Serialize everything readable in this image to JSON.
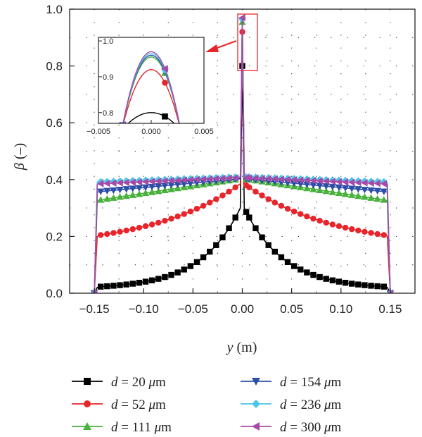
{
  "chart_data": {
    "type": "line",
    "xlabel": {
      "symbol": "y",
      "unit": " (m)"
    },
    "ylabel": {
      "symbol": "β",
      "unit": " (–)"
    },
    "xlim": [
      -0.175,
      0.175
    ],
    "ylim": [
      0,
      1.0
    ],
    "xticks": [
      -0.15,
      -0.1,
      -0.05,
      0.0,
      0.05,
      0.1,
      0.15
    ],
    "xtick_labels": [
      "−0.15",
      "−0.10",
      "−0.05",
      "0.00",
      "0.05",
      "0.10",
      "0.15"
    ],
    "yticks": [
      0.0,
      0.2,
      0.4,
      0.6,
      0.8,
      1.0
    ],
    "ytick_labels": [
      "0.0",
      "0.2",
      "0.4",
      "0.6",
      "0.8",
      "1.0"
    ],
    "grid": "dotted",
    "series": [
      {
        "name": "d = 20 μm",
        "prefix": "d",
        "eq": " = 20 ",
        "unit_mu": "μ",
        "unit_rest": "m",
        "color": "#000000",
        "marker": "square",
        "params": {
          "wall": 0.02,
          "base": 0.0224,
          "center": 0.3,
          "shape": "exp",
          "k": 25,
          "peak": 0.8
        }
      },
      {
        "name": "d = 52 μm",
        "prefix": "d",
        "eq": " = 52 ",
        "unit_mu": "μ",
        "unit_rest": "m",
        "color": "#e8252b",
        "marker": "circle",
        "params": {
          "wall": 0.2,
          "base": 0.203,
          "center": 0.385,
          "shape": "exp",
          "k": 11,
          "peak": 0.92
        }
      },
      {
        "name": "d = 111 μm",
        "prefix": "d",
        "eq": " = 111 ",
        "unit_mu": "μ",
        "unit_rest": "m",
        "color": "#49b23c",
        "marker": "triangle-up",
        "params": {
          "wall": 0.325,
          "base": 0.327,
          "center": 0.403,
          "shape": "linear",
          "peak": 0.955
        }
      },
      {
        "name": "d = 154 μm",
        "prefix": "d",
        "eq": " = 154 ",
        "unit_mu": "μ",
        "unit_rest": "m",
        "color": "#2d4fa8",
        "marker": "triangle-down",
        "params": {
          "wall": 0.355,
          "base": 0.357,
          "center": 0.403,
          "shape": "linear",
          "peak": 0.96
        }
      },
      {
        "name": "d = 236 μm",
        "prefix": "d",
        "eq": " = 236 ",
        "unit_mu": "μ",
        "unit_rest": "m",
        "color": "#4cc6e8",
        "marker": "diamond",
        "params": {
          "wall": 0.39,
          "base": 0.392,
          "center": 0.41,
          "shape": "linear",
          "peak": 0.965
        }
      },
      {
        "name": "d = 300 μm",
        "prefix": "d",
        "eq": " = 300 ",
        "unit_mu": "μ",
        "unit_rest": "m",
        "color": "#a64aa8",
        "marker": "triangle-left",
        "params": {
          "wall": 0.383,
          "base": 0.385,
          "center": 0.407,
          "shape": "linear",
          "peak": 0.97
        }
      }
    ],
    "inset": {
      "xlim": [
        -0.005,
        0.005
      ],
      "ylim": [
        0.77,
        1.01
      ],
      "xticks": [
        -0.005,
        0.0,
        0.005
      ],
      "xtick_labels": [
        "−0.005",
        "0.000",
        "0.005"
      ],
      "yticks": [
        0.8,
        0.9,
        1.0
      ],
      "ytick_labels": [
        "0.8",
        "0.9",
        "1.0"
      ]
    }
  }
}
